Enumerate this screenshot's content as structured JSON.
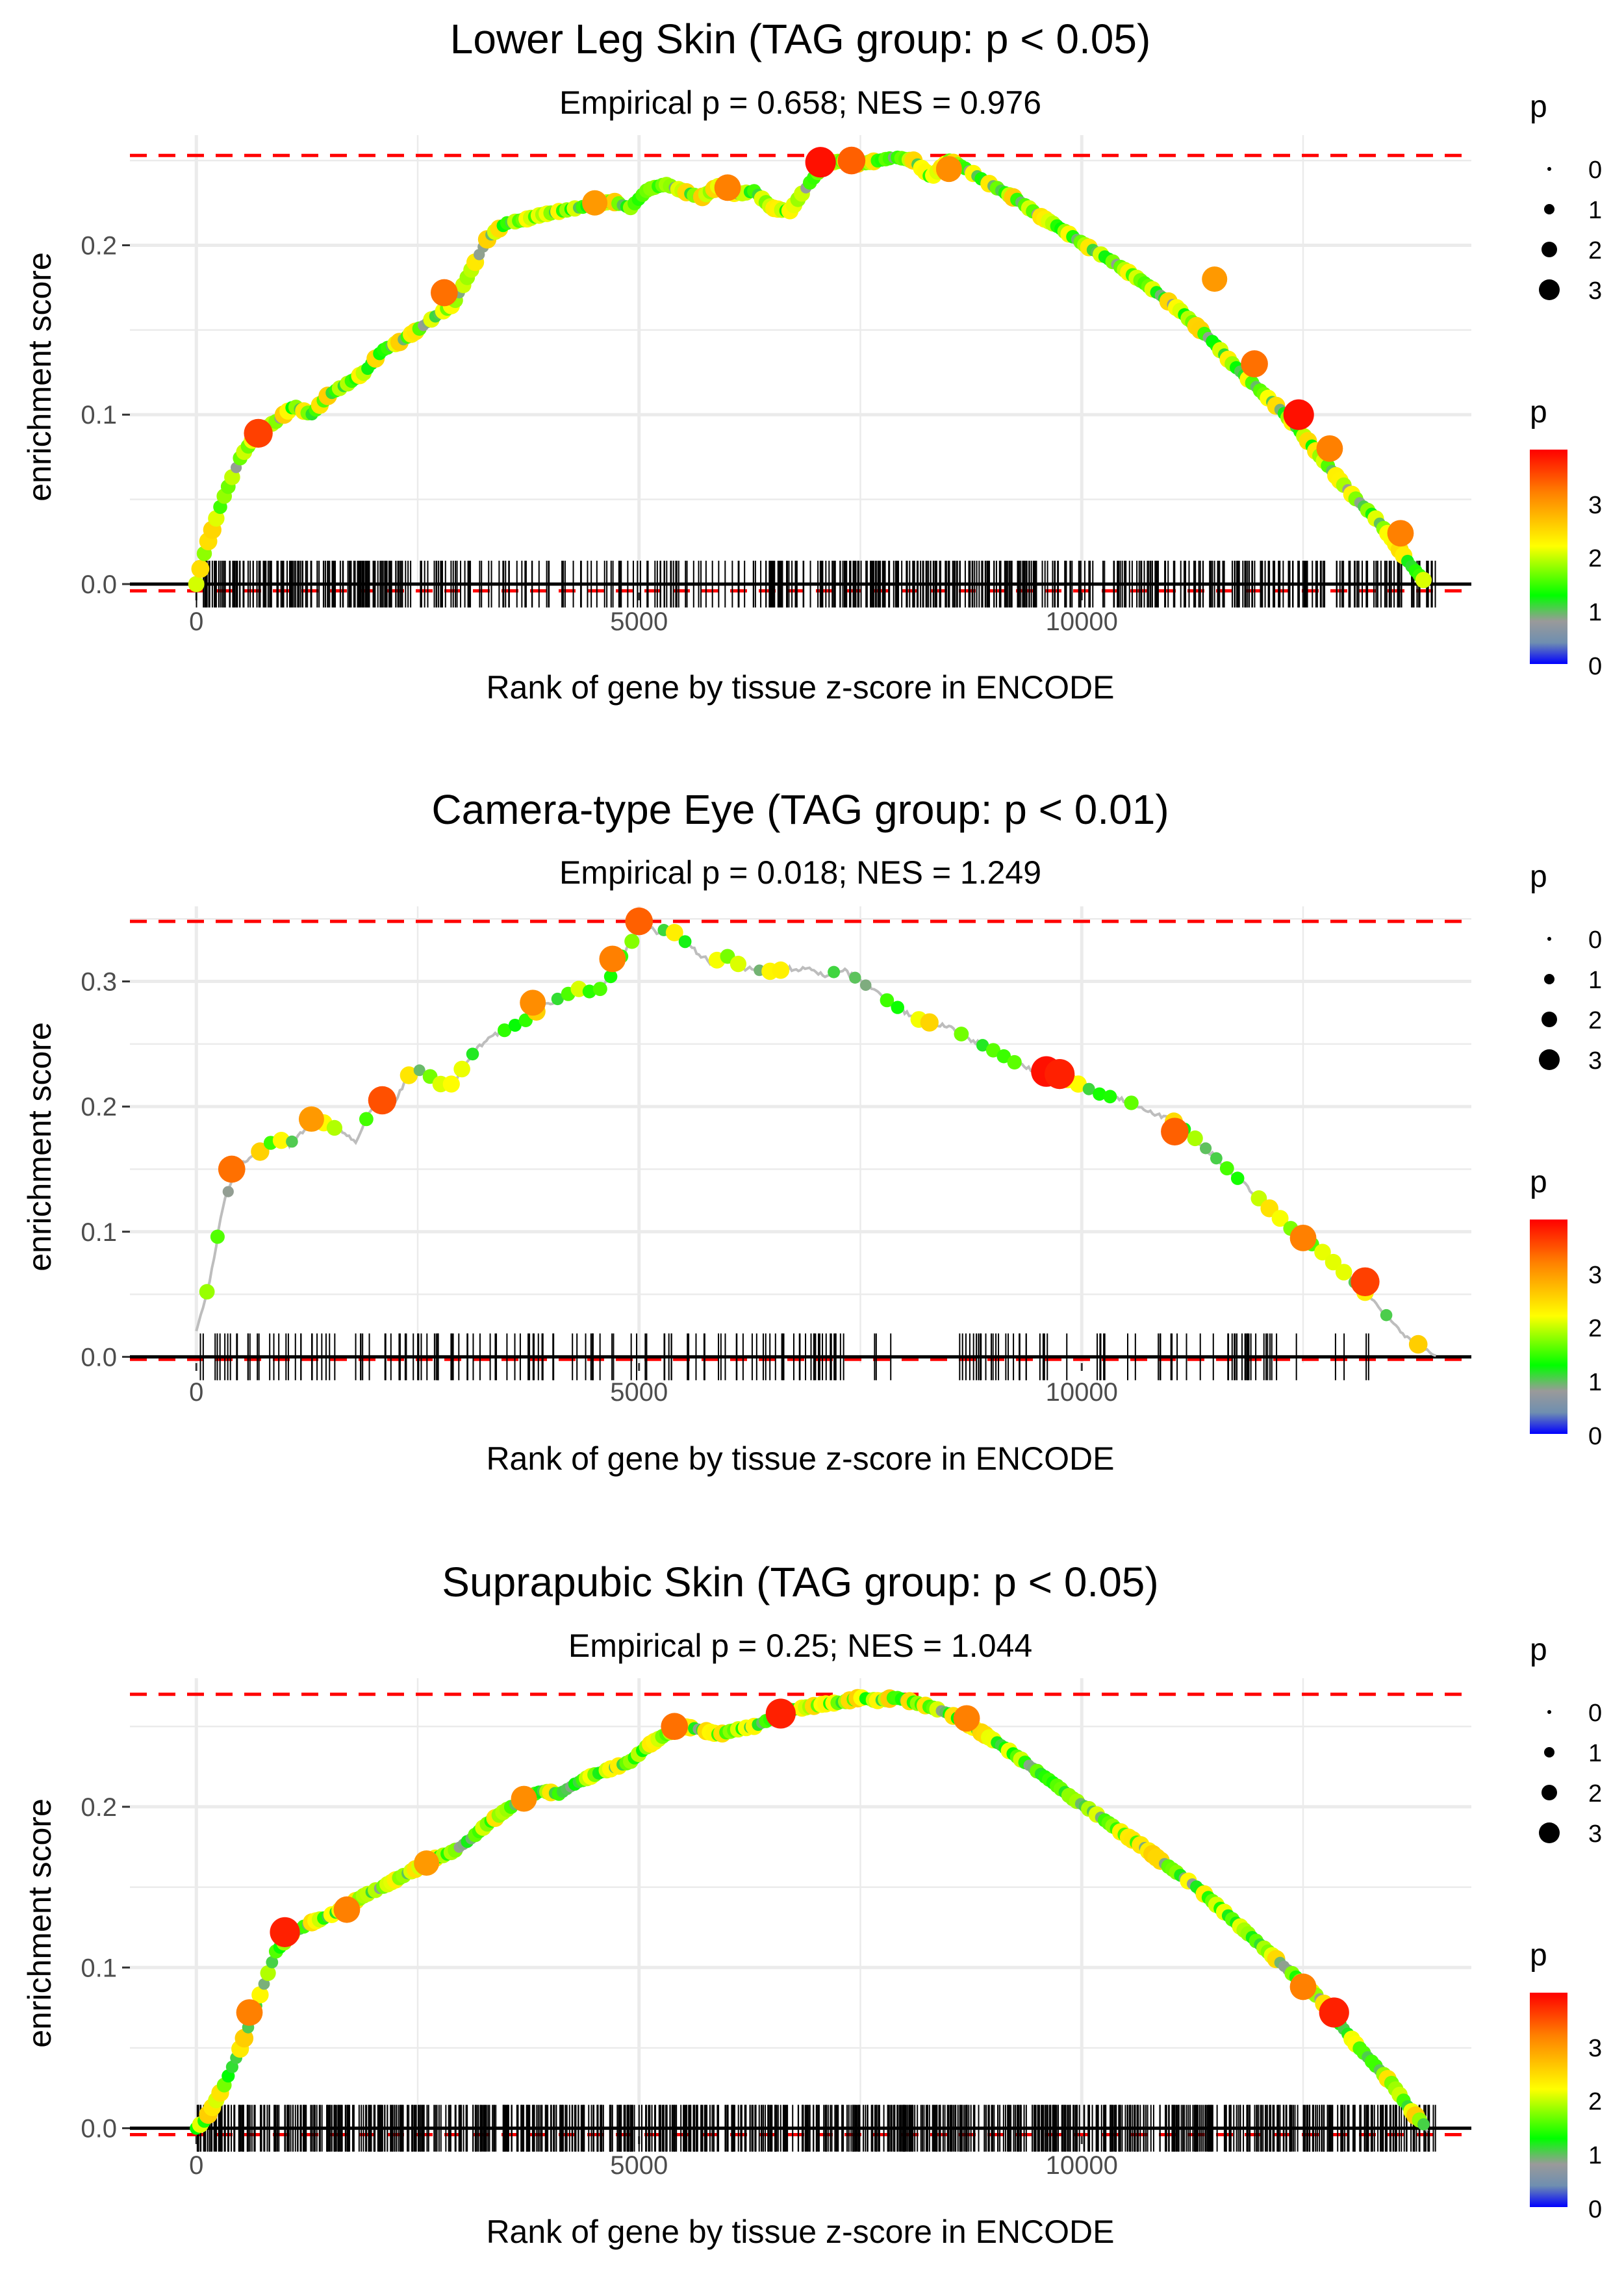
{
  "figure": {
    "background": "#ffffff",
    "panel_count": 3
  },
  "style": {
    "grid_color": "#ebebeb",
    "line_color": "#bdbdbd",
    "hline_color": "#ff0000",
    "rug_color": "#000000",
    "colorbar_stops": [
      "#0000ff",
      "#6f8fb0",
      "#9a9a9a",
      "#00ff00",
      "#ffff00",
      "#ff8000",
      "#ff0000"
    ]
  },
  "chart_data": [
    {
      "type": "line",
      "title": "Lower Leg Skin (TAG group: p < 0.05)",
      "subtitle": "Empirical p = 0.658; NES = 0.976",
      "xlabel": "Rank of gene by tissue z-score in ENCODE",
      "ylabel": "enrichment score",
      "xlim": [
        -750,
        14400
      ],
      "ylim": [
        -0.005,
        0.265
      ],
      "xticks": [
        0,
        5000,
        10000
      ],
      "xtick_labels": [
        "0",
        "5000",
        "10000"
      ],
      "yticks": [
        0.0,
        0.1,
        0.2
      ],
      "ytick_labels": [
        "0.0",
        "0.1",
        "0.2"
      ],
      "max_es": 0.253,
      "min_es": -0.004,
      "n_genes": 14000,
      "curve": {
        "x": [
          0,
          100,
          300,
          500,
          700,
          900,
          1100,
          1300,
          1500,
          1700,
          1900,
          2100,
          2300,
          2500,
          2700,
          2900,
          3100,
          3300,
          3500,
          3700,
          3900,
          4100,
          4300,
          4500,
          4700,
          4900,
          5100,
          5300,
          5500,
          5700,
          5900,
          6100,
          6300,
          6500,
          6700,
          6900,
          7100,
          7300,
          7500,
          7700,
          7900,
          8100,
          8300,
          8500,
          8700,
          8900,
          9100,
          9300,
          9500,
          9700,
          9900,
          10100,
          10300,
          10500,
          10700,
          10900,
          11100,
          11300,
          11500,
          11700,
          11900,
          12100,
          12300,
          12500,
          12700,
          12900,
          13100,
          13300,
          13500,
          13700,
          13900
        ],
        "y": [
          0.0,
          0.02,
          0.05,
          0.075,
          0.09,
          0.096,
          0.105,
          0.1,
          0.112,
          0.118,
          0.125,
          0.138,
          0.143,
          0.15,
          0.158,
          0.165,
          0.185,
          0.205,
          0.213,
          0.215,
          0.218,
          0.22,
          0.222,
          0.224,
          0.226,
          0.222,
          0.233,
          0.236,
          0.232,
          0.228,
          0.235,
          0.23,
          0.232,
          0.222,
          0.22,
          0.235,
          0.248,
          0.25,
          0.248,
          0.25,
          0.252,
          0.25,
          0.24,
          0.25,
          0.245,
          0.238,
          0.232,
          0.226,
          0.218,
          0.212,
          0.205,
          0.198,
          0.192,
          0.185,
          0.178,
          0.17,
          0.162,
          0.152,
          0.142,
          0.13,
          0.12,
          0.11,
          0.1,
          0.088,
          0.075,
          0.062,
          0.05,
          0.04,
          0.027,
          0.012,
          0.0
        ]
      },
      "highlights": [
        {
          "x": 700,
          "y": 0.089,
          "p": 3.6
        },
        {
          "x": 2800,
          "y": 0.172,
          "p": 3.3
        },
        {
          "x": 4500,
          "y": 0.225,
          "p": 3.0
        },
        {
          "x": 6000,
          "y": 0.234,
          "p": 3.2
        },
        {
          "x": 7050,
          "y": 0.249,
          "p": 3.9
        },
        {
          "x": 7400,
          "y": 0.25,
          "p": 3.4
        },
        {
          "x": 8500,
          "y": 0.245,
          "p": 3.1
        },
        {
          "x": 11500,
          "y": 0.18,
          "p": 3.0
        },
        {
          "x": 11950,
          "y": 0.13,
          "p": 3.3
        },
        {
          "x": 12450,
          "y": 0.1,
          "p": 3.9
        },
        {
          "x": 12800,
          "y": 0.08,
          "p": 3.2
        },
        {
          "x": 13600,
          "y": 0.03,
          "p": 3.2
        }
      ],
      "rug_density": [
        [
          0,
          3000,
          9
        ],
        [
          3000,
          6500,
          4
        ],
        [
          6500,
          9500,
          10
        ],
        [
          9500,
          14000,
          7
        ]
      ],
      "seed": 11
    },
    {
      "type": "line",
      "title": "Camera-type Eye (TAG group: p < 0.01)",
      "subtitle": "Empirical p = 0.018; NES = 1.249",
      "xlabel": "Rank of gene by tissue z-score in ENCODE",
      "ylabel": "enrichment score",
      "xlim": [
        -750,
        14400
      ],
      "ylim": [
        -0.005,
        0.36
      ],
      "xticks": [
        0,
        5000,
        10000
      ],
      "xtick_labels": [
        "0",
        "5000",
        "10000"
      ],
      "yticks": [
        0.0,
        0.1,
        0.2,
        0.3
      ],
      "ytick_labels": [
        "0.0",
        "0.1",
        "0.2",
        "0.3"
      ],
      "max_es": 0.348,
      "min_es": -0.002,
      "n_genes": 14000,
      "curve": {
        "x": [
          0,
          150,
          300,
          450,
          600,
          750,
          900,
          1050,
          1200,
          1350,
          1500,
          1650,
          1800,
          1950,
          2100,
          2250,
          2400,
          2550,
          2700,
          2850,
          3000,
          3150,
          3300,
          3450,
          3600,
          3750,
          3900,
          4050,
          4200,
          4350,
          4500,
          4650,
          4800,
          4950,
          5050,
          5200,
          5350,
          5800,
          6000,
          6200,
          6500,
          6700,
          6900,
          7100,
          7300,
          7400,
          7900,
          8200,
          8500,
          8700,
          9000,
          9300,
          9500,
          9700,
          9900,
          10200,
          10500,
          10800,
          11000,
          11200,
          11500,
          11800,
          12100,
          12400,
          12700,
          13000,
          13300,
          13600,
          13900,
          14000
        ],
        "y": [
          0.02,
          0.06,
          0.12,
          0.15,
          0.16,
          0.165,
          0.175,
          0.17,
          0.18,
          0.19,
          0.185,
          0.18,
          0.17,
          0.195,
          0.21,
          0.205,
          0.225,
          0.23,
          0.22,
          0.215,
          0.23,
          0.245,
          0.255,
          0.26,
          0.265,
          0.27,
          0.28,
          0.285,
          0.29,
          0.295,
          0.29,
          0.3,
          0.32,
          0.335,
          0.345,
          0.34,
          0.342,
          0.315,
          0.32,
          0.31,
          0.308,
          0.31,
          0.31,
          0.305,
          0.31,
          0.305,
          0.28,
          0.268,
          0.265,
          0.255,
          0.245,
          0.233,
          0.228,
          0.225,
          0.22,
          0.21,
          0.205,
          0.195,
          0.19,
          0.18,
          0.16,
          0.14,
          0.12,
          0.1,
          0.085,
          0.065,
          0.045,
          0.02,
          0.005,
          0.0
        ]
      },
      "highlights": [
        {
          "x": 400,
          "y": 0.15,
          "p": 3.3
        },
        {
          "x": 1300,
          "y": 0.19,
          "p": 3.0
        },
        {
          "x": 2100,
          "y": 0.205,
          "p": 3.5
        },
        {
          "x": 3800,
          "y": 0.283,
          "p": 3.1
        },
        {
          "x": 4700,
          "y": 0.318,
          "p": 3.2
        },
        {
          "x": 5000,
          "y": 0.348,
          "p": 3.4
        },
        {
          "x": 9600,
          "y": 0.228,
          "p": 3.9
        },
        {
          "x": 9750,
          "y": 0.226,
          "p": 3.8
        },
        {
          "x": 11050,
          "y": 0.18,
          "p": 3.4
        },
        {
          "x": 12500,
          "y": 0.095,
          "p": 3.2
        },
        {
          "x": 13200,
          "y": 0.06,
          "p": 3.6
        }
      ],
      "rug_density": [
        [
          0,
          7500,
          3
        ],
        [
          7500,
          9500,
          2
        ],
        [
          9500,
          13300,
          2
        ]
      ],
      "seed": 29
    },
    {
      "type": "line",
      "title": "Suprapubic Skin (TAG group: p < 0.05)",
      "subtitle": "Empirical p = 0.25; NES = 1.044",
      "xlabel": "Rank of gene by tissue z-score in ENCODE",
      "ylabel": "enrichment score",
      "xlim": [
        -750,
        14400
      ],
      "ylim": [
        -0.005,
        0.28
      ],
      "xticks": [
        0,
        5000,
        10000
      ],
      "xtick_labels": [
        "0",
        "5000",
        "10000"
      ],
      "yticks": [
        0.0,
        0.1,
        0.2
      ],
      "ytick_labels": [
        "0.0",
        "0.1",
        "0.2"
      ],
      "max_es": 0.27,
      "min_es": -0.004,
      "n_genes": 14000,
      "curve": {
        "x": [
          0,
          100,
          300,
          500,
          700,
          900,
          1100,
          1300,
          1500,
          1700,
          1900,
          2100,
          2300,
          2500,
          2700,
          2900,
          3100,
          3300,
          3500,
          3700,
          3900,
          4100,
          4300,
          4500,
          4700,
          4900,
          5100,
          5300,
          5500,
          5700,
          5900,
          6100,
          6300,
          6500,
          6700,
          6900,
          7100,
          7300,
          7500,
          7700,
          7900,
          8100,
          8300,
          8500,
          8700,
          8900,
          9100,
          9300,
          9500,
          9700,
          9900,
          10100,
          10300,
          10500,
          10700,
          10900,
          11100,
          11300,
          11500,
          11700,
          11900,
          12100,
          12300,
          12500,
          12700,
          12900,
          13100,
          13300,
          13500,
          13700,
          13900
        ],
        "y": [
          0.0,
          0.005,
          0.025,
          0.05,
          0.08,
          0.11,
          0.122,
          0.128,
          0.132,
          0.138,
          0.145,
          0.15,
          0.156,
          0.162,
          0.168,
          0.172,
          0.18,
          0.19,
          0.198,
          0.205,
          0.21,
          0.208,
          0.215,
          0.22,
          0.224,
          0.228,
          0.238,
          0.245,
          0.25,
          0.248,
          0.245,
          0.248,
          0.25,
          0.255,
          0.26,
          0.262,
          0.264,
          0.265,
          0.268,
          0.266,
          0.268,
          0.265,
          0.262,
          0.258,
          0.252,
          0.245,
          0.238,
          0.23,
          0.222,
          0.214,
          0.205,
          0.198,
          0.19,
          0.182,
          0.175,
          0.166,
          0.158,
          0.15,
          0.14,
          0.13,
          0.12,
          0.11,
          0.1,
          0.09,
          0.08,
          0.066,
          0.052,
          0.04,
          0.028,
          0.012,
          0.0
        ]
      },
      "highlights": [
        {
          "x": 600,
          "y": 0.072,
          "p": 3.2
        },
        {
          "x": 1000,
          "y": 0.122,
          "p": 3.8
        },
        {
          "x": 1700,
          "y": 0.136,
          "p": 3.2
        },
        {
          "x": 2600,
          "y": 0.165,
          "p": 3.0
        },
        {
          "x": 3700,
          "y": 0.205,
          "p": 3.1
        },
        {
          "x": 5400,
          "y": 0.25,
          "p": 3.3
        },
        {
          "x": 6600,
          "y": 0.258,
          "p": 3.8
        },
        {
          "x": 8700,
          "y": 0.255,
          "p": 3.2
        },
        {
          "x": 12500,
          "y": 0.088,
          "p": 3.2
        },
        {
          "x": 12850,
          "y": 0.072,
          "p": 3.8
        }
      ],
      "rug_density": [
        [
          0,
          14000,
          11
        ]
      ],
      "seed": 47
    }
  ],
  "legend": {
    "size_title": "p",
    "size_labels": [
      "0",
      "1",
      "2",
      "3"
    ],
    "color_title": "p",
    "color_labels": [
      "3",
      "2",
      "1",
      "0"
    ]
  }
}
